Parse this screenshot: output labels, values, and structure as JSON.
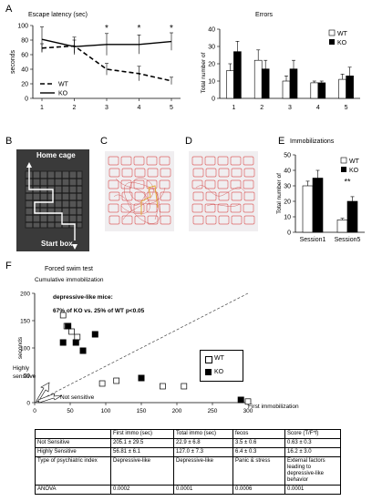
{
  "panels": {
    "A": "A",
    "B": "B",
    "C": "C",
    "D": "D",
    "E": "E",
    "F": "F"
  },
  "panel_a": {
    "escape_title": "Escape latency (sec)",
    "errors_title": "Errors",
    "legend_wt": "WT",
    "legend_ko": "KO"
  },
  "panel_b": {
    "home_cage": "Home cage",
    "start_box": "Start box"
  },
  "panel_e": {
    "title": "Immobilizations",
    "legend_wt": "WT",
    "legend_ko": "KO",
    "sig": "**"
  },
  "panel_f": {
    "title": "Forced swim test",
    "subtitle": "Cumulative immobilization",
    "note_line1": "depressive-like mice:",
    "note_line2": "67% of KO vs. 25% of WT p<0.05",
    "legend_wt": "WT",
    "legend_ko": "KO",
    "highly_sensitive_1": "Highly",
    "highly_sensitive_2": "sensitive",
    "not_sensitive": "Not sensitive",
    "xlabel": "First immobilization"
  },
  "table": {
    "header": [
      "",
      "First immo (sec)",
      "Total immo (sec)",
      "fecos",
      "Score (T/F*f)"
    ],
    "rows": [
      [
        "Not Sensitive",
        "205.1 ± 29.5",
        "22.9 ± 6.8",
        "3.5 ± 0.6",
        "0.63 ± 0.3"
      ],
      [
        "Highly Sensitive",
        "56.81 ± 6.1",
        "127.0 ± 7.3",
        "6.4 ± 0.3",
        "16.2 ± 3.0"
      ],
      [
        "Type of psychiatric index",
        "Depressive-like",
        "Depressive-like",
        "Panic & stress",
        "External factors leading to depressive-like behavior"
      ],
      [
        "ANOVA",
        "0.0002",
        "0.0001",
        "0.0006",
        "0.0001"
      ]
    ]
  },
  "chart_data": [
    {
      "type": "line",
      "x": [
        1,
        2,
        3,
        4,
        5
      ],
      "series": [
        {
          "name": "WT",
          "values": [
            69,
            72,
            40,
            34,
            24
          ],
          "errors": [
            6,
            12,
            8,
            10,
            5
          ]
        },
        {
          "name": "KO",
          "values": [
            81,
            71,
            74,
            74,
            78
          ],
          "errors": [
            17,
            9,
            15,
            13,
            12
          ]
        }
      ],
      "title": "Escape latency (sec)",
      "xlabel": "",
      "ylabel": "seconds",
      "ylim": [
        0,
        100
      ],
      "yticks": [
        0,
        20,
        40,
        60,
        80,
        100
      ],
      "annotations": [
        {
          "x": 3,
          "text": "*"
        },
        {
          "x": 4,
          "text": "*"
        },
        {
          "x": 5,
          "text": "*"
        }
      ],
      "legend": "bottom-left"
    },
    {
      "type": "bar",
      "categories": [
        "1",
        "2",
        "3",
        "4",
        "5"
      ],
      "series": [
        {
          "name": "WT",
          "values": [
            16,
            22,
            10,
            9,
            11
          ],
          "errors": [
            4,
            6,
            3,
            1,
            3
          ]
        },
        {
          "name": "KO",
          "values": [
            27,
            17,
            17,
            9,
            13
          ],
          "errors": [
            6,
            5,
            5,
            1,
            5
          ]
        }
      ],
      "title": "Errors",
      "ylabel": "Total number of",
      "ylim": [
        0,
        40
      ],
      "yticks": [
        0,
        10,
        20,
        30,
        40
      ],
      "legend": "top-right"
    },
    {
      "type": "bar",
      "categories": [
        "Session1",
        "Session5"
      ],
      "series": [
        {
          "name": "WT",
          "values": [
            30,
            8
          ],
          "errors": [
            3,
            1
          ]
        },
        {
          "name": "KO",
          "values": [
            35,
            20
          ],
          "errors": [
            5,
            3
          ]
        }
      ],
      "title": "Immobilizations",
      "ylabel": "Total number of",
      "ylim": [
        0,
        50
      ],
      "yticks": [
        0,
        10,
        20,
        30,
        40,
        50
      ],
      "annotations": [
        {
          "category": "Session5",
          "text": "**"
        }
      ],
      "legend": "top-right"
    },
    {
      "type": "scatter",
      "series": [
        {
          "name": "WT",
          "x": [
            40,
            45,
            52,
            60,
            95,
            115,
            180,
            210,
            300
          ],
          "y": [
            160,
            140,
            130,
            120,
            35,
            40,
            30,
            30,
            2
          ]
        },
        {
          "name": "KO",
          "x": [
            40,
            47,
            58,
            68,
            85,
            150,
            290
          ],
          "y": [
            110,
            140,
            110,
            95,
            125,
            45,
            5
          ]
        }
      ],
      "xlabel": "First immobilization",
      "ylabel": "seconds",
      "xlim": [
        0,
        300
      ],
      "xticks": [
        0,
        50,
        100,
        150,
        200,
        250,
        300
      ],
      "ylim": [
        0,
        200
      ],
      "yticks": [
        0,
        50,
        100,
        150,
        200
      ],
      "legend": "right"
    }
  ]
}
